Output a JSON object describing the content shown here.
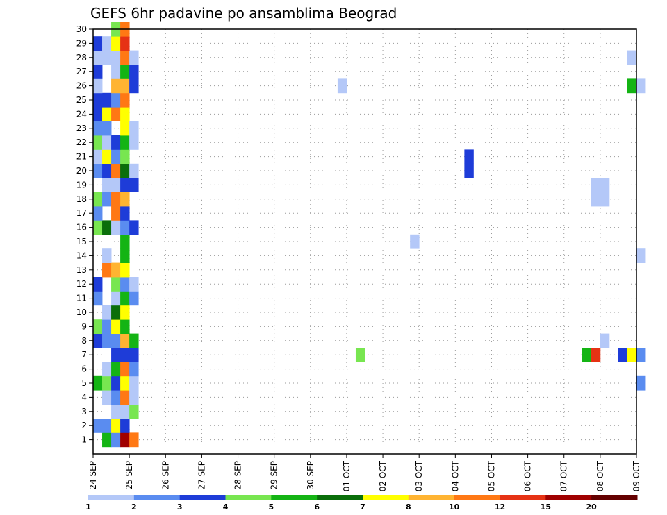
{
  "chart_data": {
    "type": "heatmap",
    "title": "GEFS 6hr padavine po ansamblima Beograd",
    "xlabel": "",
    "ylabel": "",
    "x_tick_labels": [
      "24 SEP",
      "25 SEP",
      "26 SEP",
      "27 SEP",
      "28 SEP",
      "29 SEP",
      "30 SEP",
      "01 OCT",
      "02 OCT",
      "03 OCT",
      "04 OCT",
      "05 OCT",
      "06 OCT",
      "07 OCT",
      "08 OCT",
      "09 OCT"
    ],
    "y_tick_labels": [
      "1",
      "2",
      "3",
      "4",
      "5",
      "6",
      "7",
      "8",
      "9",
      "10",
      "11",
      "12",
      "13",
      "14",
      "15",
      "16",
      "17",
      "18",
      "19",
      "20",
      "21",
      "22",
      "23",
      "24",
      "25",
      "26",
      "27",
      "28",
      "29",
      "30"
    ],
    "ylim": [
      0,
      30
    ],
    "time_steps_per_day": 4,
    "grid": true,
    "legend": {
      "placement": "bottom",
      "thresholds": [
        "1",
        "2",
        "3",
        "4",
        "5",
        "6",
        "7",
        "8",
        "10",
        "12",
        "15",
        "20"
      ],
      "colors": [
        "#b4c8f8",
        "#5a8cf0",
        "#1e3cd8",
        "#78e650",
        "#14b414",
        "#0a6e0a",
        "#ffff00",
        "#ffb432",
        "#ff7814",
        "#e63214",
        "#a00000",
        "#640000"
      ]
    },
    "cells": [
      {
        "member": 1,
        "step": 1,
        "level": 4
      },
      {
        "member": 1,
        "step": 2,
        "level": 1
      },
      {
        "member": 1,
        "step": 3,
        "level": 10
      },
      {
        "member": 1,
        "step": 4,
        "level": 8
      },
      {
        "member": 2,
        "step": 0,
        "level": 1
      },
      {
        "member": 2,
        "step": 1,
        "level": 1
      },
      {
        "member": 2,
        "step": 2,
        "level": 6
      },
      {
        "member": 2,
        "step": 3,
        "level": 2
      },
      {
        "member": 3,
        "step": 2,
        "level": 0
      },
      {
        "member": 3,
        "step": 3,
        "level": 0
      },
      {
        "member": 3,
        "step": 4,
        "level": 3
      },
      {
        "member": 4,
        "step": 1,
        "level": 0
      },
      {
        "member": 4,
        "step": 2,
        "level": 1
      },
      {
        "member": 4,
        "step": 3,
        "level": 8
      },
      {
        "member": 4,
        "step": 4,
        "level": 0
      },
      {
        "member": 5,
        "step": 0,
        "level": 4
      },
      {
        "member": 5,
        "step": 1,
        "level": 3
      },
      {
        "member": 5,
        "step": 2,
        "level": 2
      },
      {
        "member": 5,
        "step": 3,
        "level": 6
      },
      {
        "member": 5,
        "step": 4,
        "level": 0
      },
      {
        "member": 5,
        "step": 60,
        "level": 1
      },
      {
        "member": 6,
        "step": 1,
        "level": 0
      },
      {
        "member": 6,
        "step": 2,
        "level": 4
      },
      {
        "member": 6,
        "step": 3,
        "level": 8
      },
      {
        "member": 6,
        "step": 4,
        "level": 1
      },
      {
        "member": 7,
        "step": 2,
        "level": 2
      },
      {
        "member": 7,
        "step": 3,
        "level": 2
      },
      {
        "member": 7,
        "step": 4,
        "level": 2
      },
      {
        "member": 7,
        "step": 29,
        "level": 3
      },
      {
        "member": 7,
        "step": 54,
        "level": 4
      },
      {
        "member": 7,
        "step": 55,
        "level": 9
      },
      {
        "member": 7,
        "step": 58,
        "level": 2
      },
      {
        "member": 7,
        "step": 59,
        "level": 6
      },
      {
        "member": 7,
        "step": 60,
        "level": 1
      },
      {
        "member": 8,
        "step": 0,
        "level": 2
      },
      {
        "member": 8,
        "step": 1,
        "level": 1
      },
      {
        "member": 8,
        "step": 2,
        "level": 1
      },
      {
        "member": 8,
        "step": 3,
        "level": 7
      },
      {
        "member": 8,
        "step": 4,
        "level": 4
      },
      {
        "member": 8,
        "step": 56,
        "level": 0
      },
      {
        "member": 9,
        "step": 0,
        "level": 3
      },
      {
        "member": 9,
        "step": 1,
        "level": 1
      },
      {
        "member": 9,
        "step": 2,
        "level": 6
      },
      {
        "member": 9,
        "step": 3,
        "level": 4
      },
      {
        "member": 10,
        "step": 1,
        "level": 0
      },
      {
        "member": 10,
        "step": 2,
        "level": 5
      },
      {
        "member": 10,
        "step": 3,
        "level": 6
      },
      {
        "member": 11,
        "step": 0,
        "level": 1
      },
      {
        "member": 11,
        "step": 2,
        "level": 0
      },
      {
        "member": 11,
        "step": 3,
        "level": 4
      },
      {
        "member": 11,
        "step": 4,
        "level": 1
      },
      {
        "member": 12,
        "step": 0,
        "level": 2
      },
      {
        "member": 12,
        "step": 2,
        "level": 3
      },
      {
        "member": 12,
        "step": 3,
        "level": 1
      },
      {
        "member": 12,
        "step": 4,
        "level": 0
      },
      {
        "member": 13,
        "step": 1,
        "level": 8
      },
      {
        "member": 13,
        "step": 2,
        "level": 7
      },
      {
        "member": 13,
        "step": 3,
        "level": 6
      },
      {
        "member": 14,
        "step": 1,
        "level": 0
      },
      {
        "member": 14,
        "step": 3,
        "level": 4
      },
      {
        "member": 14,
        "step": 60,
        "level": 0
      },
      {
        "member": 15,
        "step": 3,
        "level": 4
      },
      {
        "member": 15,
        "step": 35,
        "level": 0
      },
      {
        "member": 16,
        "step": 0,
        "level": 3
      },
      {
        "member": 16,
        "step": 1,
        "level": 5
      },
      {
        "member": 16,
        "step": 2,
        "level": 0
      },
      {
        "member": 16,
        "step": 3,
        "level": 1
      },
      {
        "member": 16,
        "step": 4,
        "level": 2
      },
      {
        "member": 17,
        "step": 0,
        "level": 1
      },
      {
        "member": 17,
        "step": 2,
        "level": 8
      },
      {
        "member": 17,
        "step": 3,
        "level": 2
      },
      {
        "member": 18,
        "step": 0,
        "level": 3
      },
      {
        "member": 18,
        "step": 1,
        "level": 1
      },
      {
        "member": 18,
        "step": 2,
        "level": 8
      },
      {
        "member": 18,
        "step": 3,
        "level": 7
      },
      {
        "member": 18,
        "step": 55,
        "level": 0
      },
      {
        "member": 18,
        "step": 56,
        "level": 0
      },
      {
        "member": 19,
        "step": 1,
        "level": 0
      },
      {
        "member": 19,
        "step": 2,
        "level": 0
      },
      {
        "member": 19,
        "step": 3,
        "level": 2
      },
      {
        "member": 19,
        "step": 4,
        "level": 2
      },
      {
        "member": 19,
        "step": 55,
        "level": 0
      },
      {
        "member": 19,
        "step": 56,
        "level": 0
      },
      {
        "member": 20,
        "step": 0,
        "level": 1
      },
      {
        "member": 20,
        "step": 1,
        "level": 2
      },
      {
        "member": 20,
        "step": 2,
        "level": 8
      },
      {
        "member": 20,
        "step": 3,
        "level": 5
      },
      {
        "member": 20,
        "step": 4,
        "level": 0
      },
      {
        "member": 20,
        "step": 41,
        "level": 2
      },
      {
        "member": 21,
        "step": 0,
        "level": 0
      },
      {
        "member": 21,
        "step": 1,
        "level": 6
      },
      {
        "member": 21,
        "step": 2,
        "level": 1
      },
      {
        "member": 21,
        "step": 3,
        "level": 3
      },
      {
        "member": 21,
        "step": 41,
        "level": 2
      },
      {
        "member": 22,
        "step": 0,
        "level": 3
      },
      {
        "member": 22,
        "step": 1,
        "level": 0
      },
      {
        "member": 22,
        "step": 2,
        "level": 2
      },
      {
        "member": 22,
        "step": 3,
        "level": 4
      },
      {
        "member": 22,
        "step": 4,
        "level": 0
      },
      {
        "member": 23,
        "step": 0,
        "level": 1
      },
      {
        "member": 23,
        "step": 1,
        "level": 1
      },
      {
        "member": 23,
        "step": 3,
        "level": 6
      },
      {
        "member": 23,
        "step": 4,
        "level": 0
      },
      {
        "member": 24,
        "step": 0,
        "level": 2
      },
      {
        "member": 24,
        "step": 1,
        "level": 6
      },
      {
        "member": 24,
        "step": 2,
        "level": 8
      },
      {
        "member": 24,
        "step": 3,
        "level": 6
      },
      {
        "member": 25,
        "step": 0,
        "level": 2
      },
      {
        "member": 25,
        "step": 1,
        "level": 2
      },
      {
        "member": 25,
        "step": 2,
        "level": 1
      },
      {
        "member": 25,
        "step": 3,
        "level": 8
      },
      {
        "member": 26,
        "step": 0,
        "level": 0
      },
      {
        "member": 26,
        "step": 2,
        "level": 7
      },
      {
        "member": 26,
        "step": 3,
        "level": 7
      },
      {
        "member": 26,
        "step": 4,
        "level": 2
      },
      {
        "member": 26,
        "step": 27,
        "level": 0
      },
      {
        "member": 26,
        "step": 59,
        "level": 4
      },
      {
        "member": 26,
        "step": 60,
        "level": 0
      },
      {
        "member": 27,
        "step": 0,
        "level": 2
      },
      {
        "member": 27,
        "step": 2,
        "level": 0
      },
      {
        "member": 27,
        "step": 3,
        "level": 4
      },
      {
        "member": 27,
        "step": 4,
        "level": 2
      },
      {
        "member": 28,
        "step": 0,
        "level": 0
      },
      {
        "member": 28,
        "step": 1,
        "level": 0
      },
      {
        "member": 28,
        "step": 2,
        "level": 0
      },
      {
        "member": 28,
        "step": 3,
        "level": 8
      },
      {
        "member": 28,
        "step": 4,
        "level": 0
      },
      {
        "member": 28,
        "step": 59,
        "level": 0
      },
      {
        "member": 29,
        "step": 0,
        "level": 2
      },
      {
        "member": 29,
        "step": 1,
        "level": 0
      },
      {
        "member": 29,
        "step": 2,
        "level": 6
      },
      {
        "member": 29,
        "step": 3,
        "level": 9
      },
      {
        "member": 30,
        "step": 2,
        "level": 3
      },
      {
        "member": 30,
        "step": 3,
        "level": 8
      }
    ]
  }
}
